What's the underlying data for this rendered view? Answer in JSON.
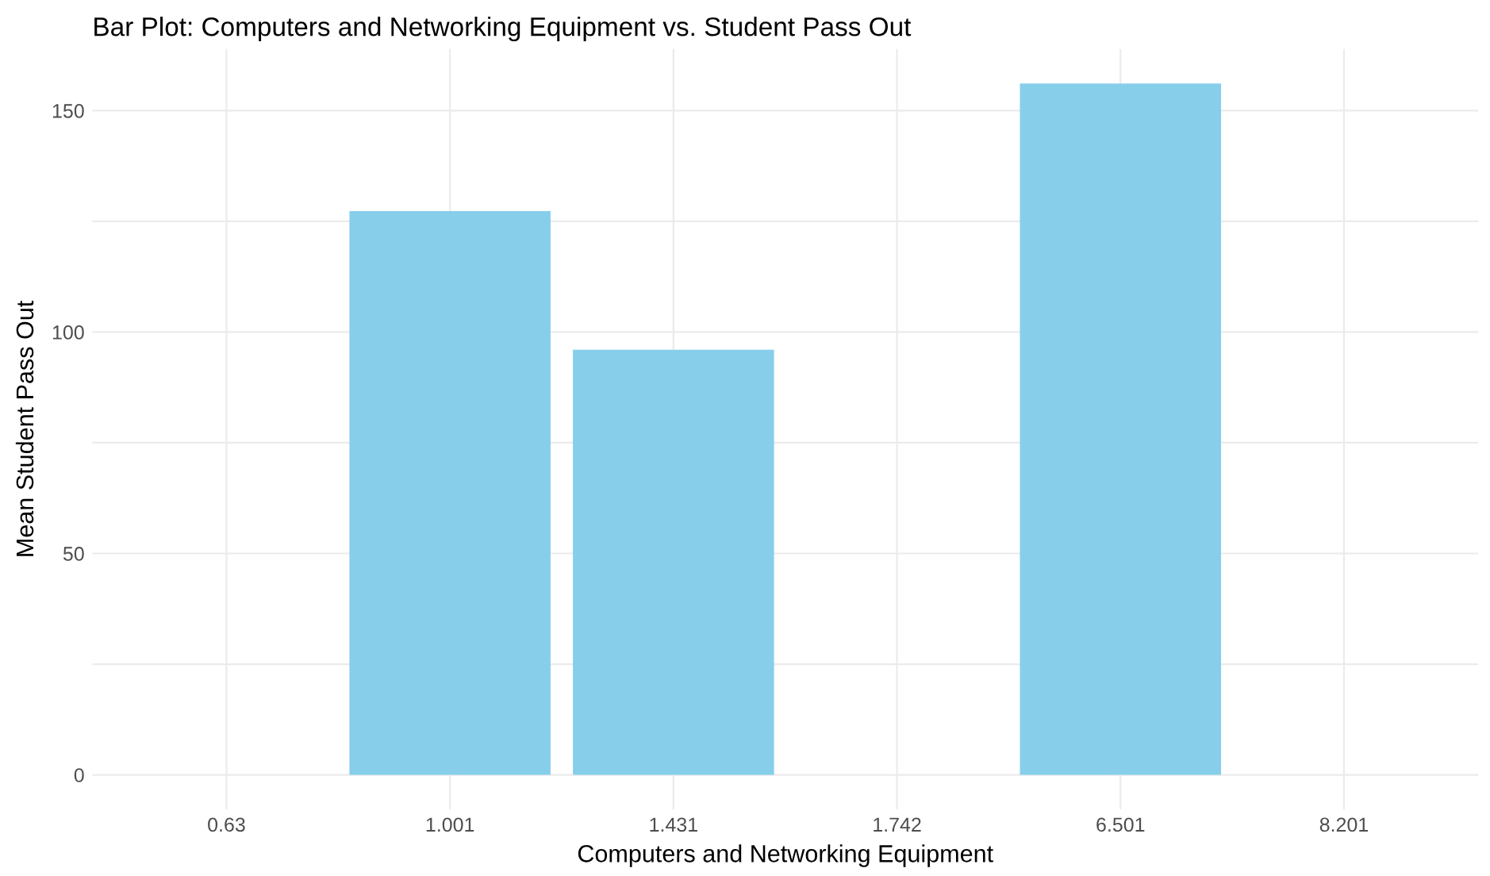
{
  "chart_data": {
    "type": "bar",
    "title": "Bar Plot: Computers and Networking Equipment vs. Student Pass Out",
    "xlabel": "Computers and Networking Equipment",
    "ylabel": "Mean Student Pass Out",
    "categories": [
      "0.63",
      "1.001",
      "1.431",
      "1.742",
      "6.501",
      "8.201"
    ],
    "values": [
      0,
      127.3,
      96,
      0,
      156.1,
      0
    ],
    "color": "#87ceeb",
    "ylim": [
      -7.8,
      163.9
    ],
    "yticks": [
      0,
      {
        "value": 25,
        "label": null
      },
      50,
      {
        "value": 75,
        "label": null
      },
      100,
      {
        "value": 125,
        "label": null
      },
      150
    ],
    "grid": true
  }
}
